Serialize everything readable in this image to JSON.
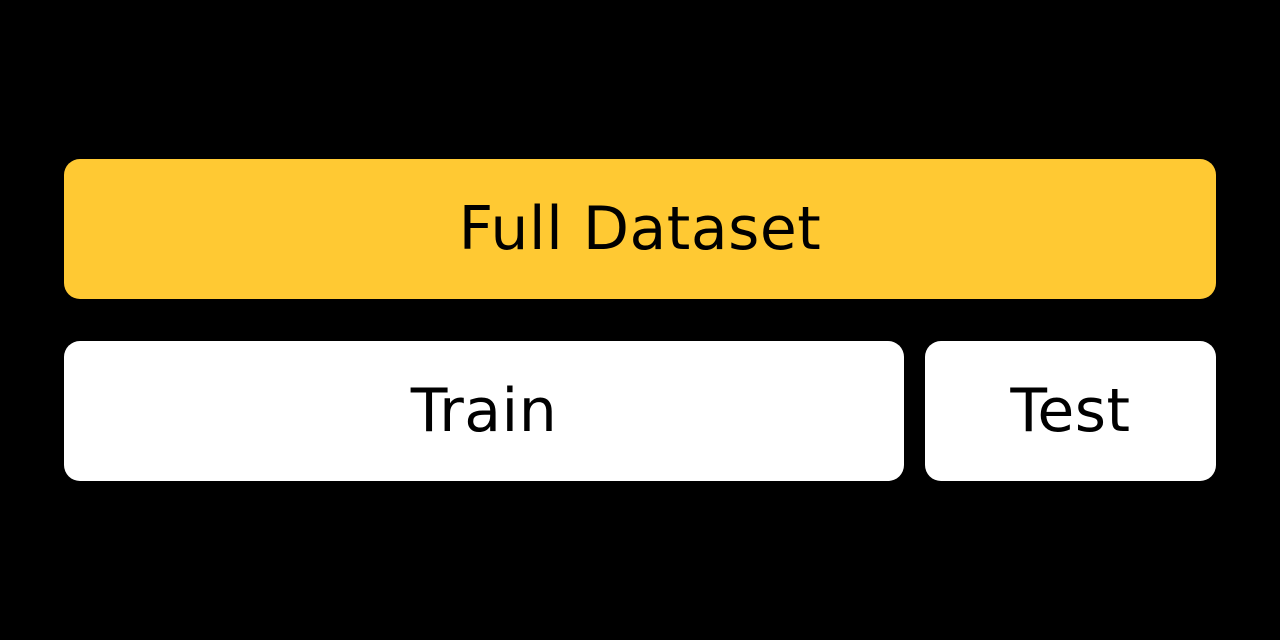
{
  "diagram": {
    "full_dataset": {
      "label": "Full Dataset",
      "color": "#FFC933"
    },
    "train": {
      "label": "Train",
      "color": "#FFFFFF"
    },
    "test": {
      "label": "Test",
      "color": "#FFFFFF"
    },
    "background_color": "#000000"
  }
}
